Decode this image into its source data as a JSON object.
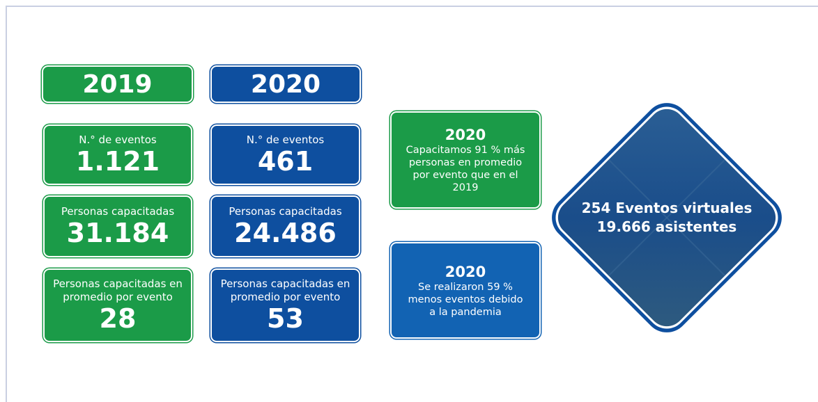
{
  "columns": [
    {
      "year": "2019",
      "stats": [
        {
          "label": "N.° de eventos",
          "value": "1.121"
        },
        {
          "label": "Personas capacitadas",
          "value": "31.184"
        },
        {
          "label": "Personas capacitadas en promedio por evento",
          "value": "28"
        }
      ]
    },
    {
      "year": "2020",
      "stats": [
        {
          "label": "N.° de eventos",
          "value": "461"
        },
        {
          "label": "Personas capacitadas",
          "value": "24.486"
        },
        {
          "label": "Personas capacitadas en promedio por evento",
          "value": "53"
        }
      ]
    }
  ],
  "notes": [
    {
      "title": "2020",
      "text": "Capacitamos 91 % más personas en promedio por evento que en el 2019"
    },
    {
      "title": "2020",
      "text": "Se realizaron 59 % menos eventos debido a la pandemia"
    }
  ],
  "highlight": {
    "line1": "254 Eventos virtuales",
    "line2": "19.666 asistentes"
  }
}
